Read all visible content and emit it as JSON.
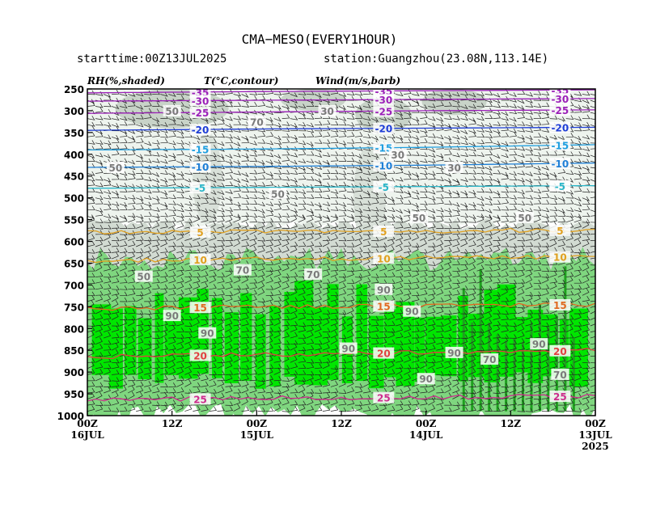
{
  "title": "CMA−MESO(EVERY1HOUR)",
  "starttime": "starttime:00Z13JUL2025",
  "station": "station:Guangzhou(23.08N,113.14E)",
  "legend": {
    "rh": "RH(%,shaded)",
    "t": "T(°C,contour)",
    "wind": "Wind(m/s,barb)"
  },
  "colors": {
    "rh_bands": [
      "#ffffff",
      "#eef4ee",
      "#d2dbd2",
      "#b8c4b8",
      "#7fd67f",
      "#00e600",
      "#1ea01e"
    ],
    "temp": {
      "-35": "#9b1fb8",
      "-30": "#9b1fb8",
      "-25": "#9b1fb8",
      "-20": "#1f3fd6",
      "-15": "#1f9fe0",
      "-10": "#1f7fd6",
      "-5": "#2ab6c8",
      "5": "#e0a020",
      "10": "#e0a020",
      "15": "#e06a20",
      "20": "#e04040",
      "25": "#cc2c8c"
    }
  },
  "chart_data": {
    "type": "heatmap",
    "title": "CMA−MESO(EVERY1HOUR)",
    "x_order": "time decreasing to the right",
    "x_ticks": [
      {
        "label": "00Z",
        "sub": "16JUL"
      },
      {
        "label": "12Z",
        "sub": ""
      },
      {
        "label": "00Z",
        "sub": "15JUL"
      },
      {
        "label": "12Z",
        "sub": ""
      },
      {
        "label": "00Z",
        "sub": "14JUL"
      },
      {
        "label": "12Z",
        "sub": ""
      },
      {
        "label": "00Z",
        "sub": "13JUL"
      }
    ],
    "x_extra": "2025",
    "x_hours": [
      72,
      60,
      48,
      36,
      24,
      12,
      0
    ],
    "y_ticks": [
      250,
      300,
      350,
      400,
      450,
      500,
      550,
      600,
      650,
      700,
      750,
      800,
      850,
      900,
      950,
      1000
    ],
    "ylim": [
      250,
      1000
    ],
    "temperature_contours": [
      {
        "value": -35,
        "label": "-35",
        "p": [
          259,
          256,
          254,
          252
        ]
      },
      {
        "value": -30,
        "label": "-30",
        "p": [
          278,
          276,
          274,
          272
        ]
      },
      {
        "value": -25,
        "label": "-25",
        "p": [
          306,
          303,
          300,
          298
        ]
      },
      {
        "value": -20,
        "label": "-20",
        "p": [
          345,
          342,
          340,
          338
        ]
      },
      {
        "value": -15,
        "label": "-15",
        "p": [
          390,
          388,
          384,
          378
        ]
      },
      {
        "value": -10,
        "label": "-10",
        "p": [
          430,
          428,
          425,
          420
        ]
      },
      {
        "value": -5,
        "label": "-5",
        "p": [
          478,
          476,
          474,
          472
        ]
      },
      {
        "value": 5,
        "label": "5",
        "p": [
          580,
          578,
          576,
          574
        ]
      },
      {
        "value": 10,
        "label": "10",
        "p": [
          645,
          640,
          638,
          635
        ]
      },
      {
        "value": 15,
        "label": "15",
        "p": [
          755,
          750,
          748,
          745
        ]
      },
      {
        "value": 20,
        "label": "20",
        "p": [
          865,
          860,
          855,
          850
        ]
      },
      {
        "value": 25,
        "label": "25",
        "p": [
          965,
          960,
          958,
          955
        ]
      }
    ],
    "rh_labels": [
      "50",
      "50",
      "70",
      "30",
      "50",
      "50",
      "50",
      "30",
      "30",
      "50",
      "70",
      "70",
      "90",
      "90",
      "90",
      "90",
      "90",
      "70",
      "90",
      "90",
      "70",
      "90"
    ]
  }
}
